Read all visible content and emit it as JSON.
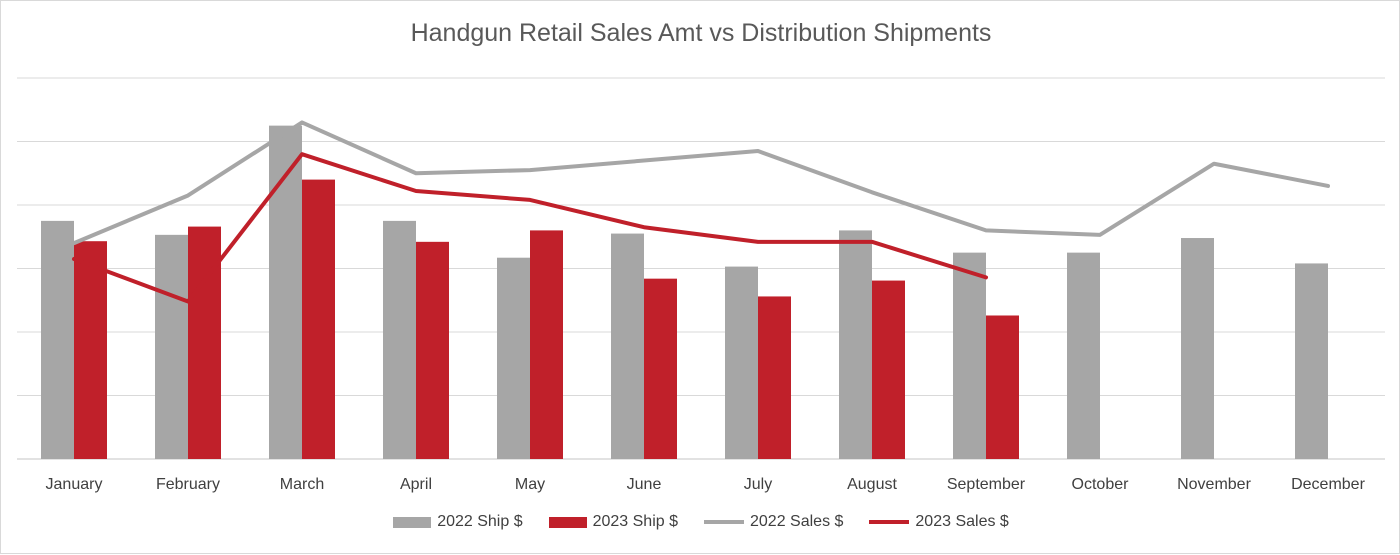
{
  "chart_data": {
    "type": "bar",
    "title": "Handgun Retail Sales Amt vs Distribution Shipments",
    "xlabel": "",
    "ylabel": "",
    "categories": [
      "January",
      "February",
      "March",
      "April",
      "May",
      "June",
      "July",
      "August",
      "September",
      "October",
      "November",
      "December"
    ],
    "ylim": [
      0,
      6
    ],
    "grid": true,
    "legend_position": "bottom",
    "series": [
      {
        "name": "2022 Ship $",
        "kind": "bar",
        "color": "#a6a6a6",
        "values": [
          3.75,
          3.53,
          5.25,
          3.75,
          3.17,
          3.55,
          3.03,
          3.6,
          3.25,
          3.25,
          3.48,
          3.08
        ]
      },
      {
        "name": "2023 Ship $",
        "kind": "bar",
        "color": "#c0202a",
        "values": [
          3.43,
          3.66,
          4.4,
          3.42,
          3.6,
          2.84,
          2.56,
          2.81,
          2.26,
          null,
          null,
          null
        ]
      },
      {
        "name": "2022 Sales $",
        "kind": "line",
        "color": "#a6a6a6",
        "values": [
          3.4,
          4.15,
          5.3,
          4.5,
          4.55,
          4.7,
          4.85,
          4.2,
          3.6,
          3.53,
          4.65,
          4.3
        ]
      },
      {
        "name": "2023 Sales $",
        "kind": "line",
        "color": "#c0202a",
        "values": [
          3.15,
          2.48,
          4.8,
          4.22,
          4.08,
          3.65,
          3.42,
          3.42,
          2.86,
          null,
          null,
          null
        ]
      }
    ]
  }
}
